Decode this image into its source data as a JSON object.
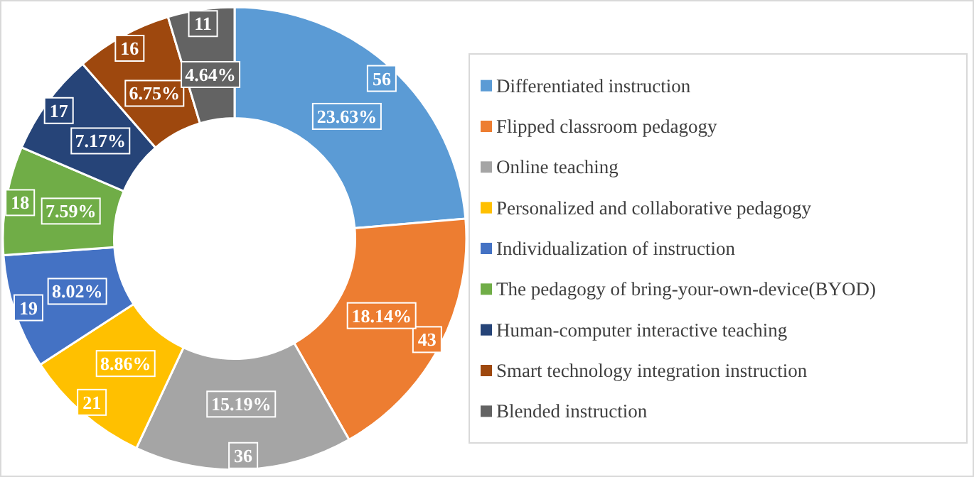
{
  "chart_data": {
    "type": "donut",
    "categories": [
      "Differentiated instruction",
      "Flipped classroom pedagogy",
      "Online teaching",
      "Personalized and collaborative pedagogy",
      "Individualization of instruction",
      "The pedagogy of bring-your-own-device(BYOD)",
      "Human-computer interactive teaching",
      "Smart technology integration instruction",
      "Blended instruction"
    ],
    "values": [
      23.63,
      18.14,
      15.19,
      8.86,
      8.02,
      7.59,
      7.17,
      6.75,
      4.64
    ],
    "colors": [
      "#5b9bd5",
      "#ed7d31",
      "#a5a5a5",
      "#ffc000",
      "#4472c4",
      "#70ad47",
      "#264478",
      "#9e480e",
      "#636363"
    ],
    "value_labels": [
      "23.63%",
      "18.14%",
      "15.19%",
      "8.86%",
      "8.02%",
      "7.59%",
      "7.17%",
      "6.75%",
      "4.64%"
    ],
    "annotations": [
      {
        "text": "56",
        "x": "Differentiated instruction"
      },
      {
        "text": "43",
        "x": "Flipped classroom pedagogy"
      },
      {
        "text": "36",
        "x": "Online teaching"
      },
      {
        "text": "21",
        "x": "Personalized and collaborative pedagogy"
      },
      {
        "text": "19",
        "x": "Individualization of instruction"
      },
      {
        "text": "18",
        "x": "The pedagogy of bring-your-own-device(BYOD)"
      },
      {
        "text": "17",
        "x": "Human-computer interactive teaching"
      },
      {
        "text": "16",
        "x": "Smart technology integration instruction"
      },
      {
        "text": "11",
        "x": "Blended instruction"
      }
    ],
    "legend": "right"
  }
}
